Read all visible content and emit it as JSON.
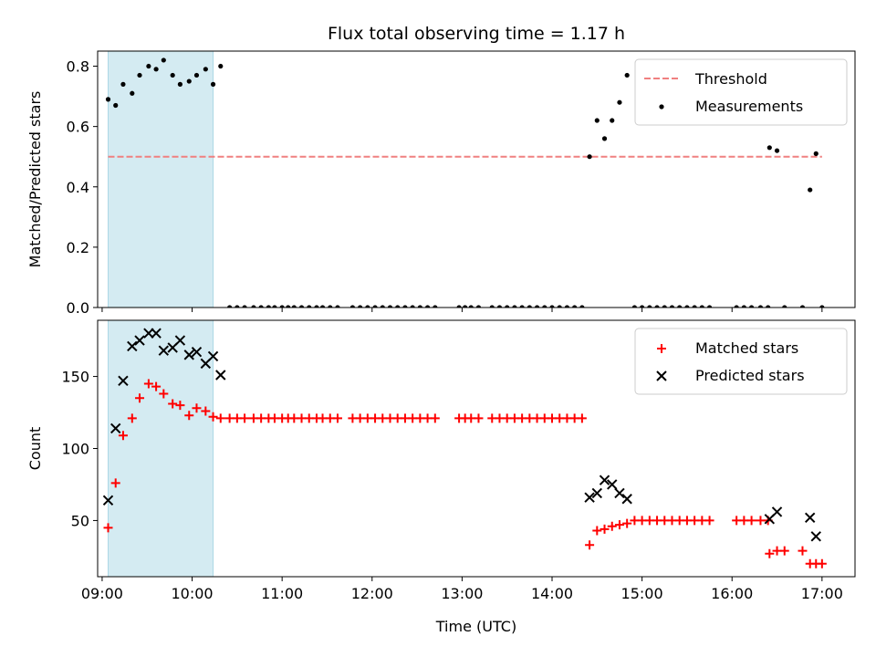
{
  "chart_data": [
    {
      "type": "scatter",
      "title": "Flux total observing time = 1.17 h",
      "xlabel": "",
      "ylabel": "Matched/Predicted stars",
      "xlim": [
        "08:57",
        "17:22"
      ],
      "ylim": [
        0,
        0.85
      ],
      "grid": false,
      "legend": "top-right",
      "x_ticks": [
        "09:00",
        "10:00",
        "11:00",
        "12:00",
        "13:00",
        "14:00",
        "15:00",
        "16:00",
        "17:00"
      ],
      "y_ticks": [
        "0.0",
        "0.2",
        "0.4",
        "0.6",
        "0.8"
      ],
      "shaded_interval": [
        "09:04",
        "10:14"
      ],
      "shade_color": "#add8e6",
      "threshold": {
        "name": "Threshold",
        "value": 0.5,
        "x_range": [
          "09:04",
          "17:00"
        ],
        "color": "#f08080"
      },
      "series": [
        {
          "name": "Measurements",
          "color": "#000000",
          "marker": "dot",
          "points": [
            [
              "09:04",
              0.69
            ],
            [
              "09:09",
              0.67
            ],
            [
              "09:14",
              0.74
            ],
            [
              "09:20",
              0.71
            ],
            [
              "09:25",
              0.77
            ],
            [
              "09:31",
              0.8
            ],
            [
              "09:36",
              0.79
            ],
            [
              "09:41",
              0.82
            ],
            [
              "09:47",
              0.77
            ],
            [
              "09:52",
              0.74
            ],
            [
              "09:58",
              0.75
            ],
            [
              "10:03",
              0.77
            ],
            [
              "10:09",
              0.79
            ],
            [
              "10:14",
              0.74
            ],
            [
              "10:19",
              0.8
            ],
            [
              "10:25",
              0
            ],
            [
              "10:30",
              0
            ],
            [
              "10:35",
              0
            ],
            [
              "10:41",
              0
            ],
            [
              "10:46",
              0
            ],
            [
              "10:51",
              0
            ],
            [
              "10:55",
              0
            ],
            [
              "11:00",
              0
            ],
            [
              "11:04",
              0
            ],
            [
              "11:08",
              0
            ],
            [
              "11:13",
              0
            ],
            [
              "11:18",
              0
            ],
            [
              "11:23",
              0
            ],
            [
              "11:27",
              0
            ],
            [
              "11:32",
              0
            ],
            [
              "11:37",
              0
            ],
            [
              "11:47",
              0
            ],
            [
              "11:52",
              0
            ],
            [
              "11:57",
              0
            ],
            [
              "12:02",
              0
            ],
            [
              "12:07",
              0
            ],
            [
              "12:12",
              0
            ],
            [
              "12:17",
              0
            ],
            [
              "12:22",
              0
            ],
            [
              "12:27",
              0
            ],
            [
              "12:32",
              0
            ],
            [
              "12:37",
              0
            ],
            [
              "12:42",
              0
            ],
            [
              "12:58",
              0
            ],
            [
              "13:02",
              0
            ],
            [
              "13:06",
              0
            ],
            [
              "13:11",
              0
            ],
            [
              "13:20",
              0
            ],
            [
              "13:25",
              0
            ],
            [
              "13:30",
              0
            ],
            [
              "13:35",
              0
            ],
            [
              "13:40",
              0
            ],
            [
              "13:45",
              0
            ],
            [
              "13:50",
              0
            ],
            [
              "13:55",
              0
            ],
            [
              "14:00",
              0
            ],
            [
              "14:05",
              0
            ],
            [
              "14:10",
              0
            ],
            [
              "14:15",
              0
            ],
            [
              "14:20",
              0
            ],
            [
              "14:25",
              0.5
            ],
            [
              "14:30",
              0.62
            ],
            [
              "14:35",
              0.56
            ],
            [
              "14:40",
              0.62
            ],
            [
              "14:45",
              0.68
            ],
            [
              "14:50",
              0.77
            ],
            [
              "14:55",
              0
            ],
            [
              "15:00",
              0
            ],
            [
              "15:05",
              0
            ],
            [
              "15:10",
              0
            ],
            [
              "15:15",
              0
            ],
            [
              "15:20",
              0
            ],
            [
              "15:25",
              0
            ],
            [
              "15:30",
              0
            ],
            [
              "15:35",
              0
            ],
            [
              "15:40",
              0
            ],
            [
              "15:45",
              0
            ],
            [
              "16:03",
              0
            ],
            [
              "16:08",
              0
            ],
            [
              "16:13",
              0
            ],
            [
              "16:19",
              0
            ],
            [
              "16:24",
              0
            ],
            [
              "16:25",
              0.53
            ],
            [
              "16:30",
              0.52
            ],
            [
              "16:35",
              0
            ],
            [
              "16:47",
              0
            ],
            [
              "16:52",
              0.39
            ],
            [
              "16:56",
              0.51
            ],
            [
              "17:00",
              0
            ]
          ]
        }
      ]
    },
    {
      "type": "scatter",
      "title": "",
      "xlabel": "Time (UTC)",
      "ylabel": "Count",
      "xlim": [
        "08:57",
        "17:22"
      ],
      "ylim": [
        11,
        189
      ],
      "grid": false,
      "legend": "top-right",
      "x_ticks": [
        "09:00",
        "10:00",
        "11:00",
        "12:00",
        "13:00",
        "14:00",
        "15:00",
        "16:00",
        "17:00"
      ],
      "y_ticks": [
        "50",
        "100",
        "150"
      ],
      "shaded_interval": [
        "09:04",
        "10:14"
      ],
      "shade_color": "#add8e6",
      "series": [
        {
          "name": "Matched stars",
          "color": "#ff0000",
          "marker": "plus",
          "points": [
            [
              "09:04",
              45
            ],
            [
              "09:09",
              76
            ],
            [
              "09:14",
              109
            ],
            [
              "09:20",
              121
            ],
            [
              "09:25",
              135
            ],
            [
              "09:31",
              145
            ],
            [
              "09:36",
              143
            ],
            [
              "09:41",
              138
            ],
            [
              "09:47",
              131
            ],
            [
              "09:52",
              130
            ],
            [
              "09:58",
              123
            ],
            [
              "10:03",
              128
            ],
            [
              "10:09",
              126
            ],
            [
              "10:14",
              122
            ],
            [
              "10:19",
              121
            ],
            [
              "10:25",
              121
            ],
            [
              "10:30",
              121
            ],
            [
              "10:35",
              121
            ],
            [
              "10:41",
              121
            ],
            [
              "10:46",
              121
            ],
            [
              "10:51",
              121
            ],
            [
              "10:55",
              121
            ],
            [
              "11:00",
              121
            ],
            [
              "11:04",
              121
            ],
            [
              "11:08",
              121
            ],
            [
              "11:13",
              121
            ],
            [
              "11:18",
              121
            ],
            [
              "11:23",
              121
            ],
            [
              "11:27",
              121
            ],
            [
              "11:32",
              121
            ],
            [
              "11:37",
              121
            ],
            [
              "11:47",
              121
            ],
            [
              "11:52",
              121
            ],
            [
              "11:57",
              121
            ],
            [
              "12:02",
              121
            ],
            [
              "12:07",
              121
            ],
            [
              "12:12",
              121
            ],
            [
              "12:17",
              121
            ],
            [
              "12:22",
              121
            ],
            [
              "12:27",
              121
            ],
            [
              "12:32",
              121
            ],
            [
              "12:37",
              121
            ],
            [
              "12:42",
              121
            ],
            [
              "12:58",
              121
            ],
            [
              "13:02",
              121
            ],
            [
              "13:06",
              121
            ],
            [
              "13:11",
              121
            ],
            [
              "13:20",
              121
            ],
            [
              "13:25",
              121
            ],
            [
              "13:30",
              121
            ],
            [
              "13:35",
              121
            ],
            [
              "13:40",
              121
            ],
            [
              "13:45",
              121
            ],
            [
              "13:50",
              121
            ],
            [
              "13:55",
              121
            ],
            [
              "14:00",
              121
            ],
            [
              "14:05",
              121
            ],
            [
              "14:10",
              121
            ],
            [
              "14:15",
              121
            ],
            [
              "14:20",
              121
            ],
            [
              "14:25",
              33
            ],
            [
              "14:30",
              43
            ],
            [
              "14:35",
              44
            ],
            [
              "14:40",
              46
            ],
            [
              "14:45",
              47
            ],
            [
              "14:50",
              48
            ],
            [
              "14:55",
              50
            ],
            [
              "15:00",
              50
            ],
            [
              "15:05",
              50
            ],
            [
              "15:10",
              50
            ],
            [
              "15:15",
              50
            ],
            [
              "15:20",
              50
            ],
            [
              "15:25",
              50
            ],
            [
              "15:30",
              50
            ],
            [
              "15:35",
              50
            ],
            [
              "15:40",
              50
            ],
            [
              "15:45",
              50
            ],
            [
              "16:03",
              50
            ],
            [
              "16:08",
              50
            ],
            [
              "16:13",
              50
            ],
            [
              "16:19",
              50
            ],
            [
              "16:24",
              50
            ],
            [
              "16:25",
              27
            ],
            [
              "16:30",
              29
            ],
            [
              "16:35",
              29
            ],
            [
              "16:47",
              29
            ],
            [
              "16:52",
              20
            ],
            [
              "16:56",
              20
            ],
            [
              "17:00",
              20
            ]
          ]
        },
        {
          "name": "Predicted stars",
          "color": "#000000",
          "marker": "x",
          "points": [
            [
              "09:04",
              64
            ],
            [
              "09:09",
              114
            ],
            [
              "09:14",
              147
            ],
            [
              "09:20",
              171
            ],
            [
              "09:25",
              175
            ],
            [
              "09:31",
              180
            ],
            [
              "09:36",
              180
            ],
            [
              "09:41",
              168
            ],
            [
              "09:47",
              170
            ],
            [
              "09:52",
              175
            ],
            [
              "09:58",
              165
            ],
            [
              "10:03",
              167
            ],
            [
              "10:09",
              159
            ],
            [
              "10:14",
              164
            ],
            [
              "10:19",
              151
            ],
            [
              "14:25",
              66
            ],
            [
              "14:30",
              69
            ],
            [
              "14:35",
              78
            ],
            [
              "14:40",
              75
            ],
            [
              "14:45",
              69
            ],
            [
              "14:50",
              65
            ],
            [
              "16:25",
              51
            ],
            [
              "16:30",
              56
            ],
            [
              "16:52",
              52
            ],
            [
              "16:56",
              39
            ]
          ]
        }
      ]
    }
  ]
}
